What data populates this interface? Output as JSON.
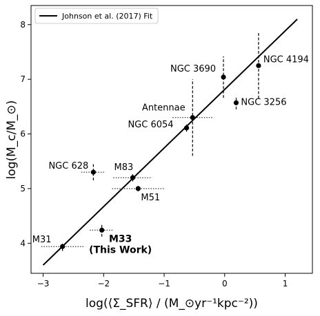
{
  "chart_data": {
    "type": "scatter",
    "title": "",
    "xlabel": "log(⟨Σ_SFR⟩ / (M_⊙yr⁻¹kpc⁻²))",
    "ylabel": "log(M_c/M_⊙)",
    "xlim": [
      -3.2,
      1.45
    ],
    "ylim": [
      3.45,
      8.35
    ],
    "x_ticks": [
      -3,
      -2,
      -1,
      0,
      1
    ],
    "y_ticks": [
      4,
      5,
      6,
      7,
      8
    ],
    "grid": false,
    "legend": {
      "position": "top-left",
      "entries": [
        "Johnson et al. (2017) Fit"
      ]
    },
    "fit_line": {
      "name": "Johnson et al. (2017) Fit",
      "x": [
        -3.0,
        1.2
      ],
      "y": [
        3.6,
        8.1
      ]
    },
    "points": [
      {
        "label": "M31",
        "x": -2.68,
        "y": 3.94,
        "xerr": 0.35,
        "yerr": 0.08,
        "bold": false,
        "label_dx": -30,
        "label_dy": -6
      },
      {
        "label": "M33\n(This Work)",
        "x": -2.03,
        "y": 4.24,
        "xerr": 0.2,
        "yerr": 0.12,
        "bold": true,
        "label_dx": 27,
        "label_dy": 17
      },
      {
        "label": "NGC 628",
        "x": -2.17,
        "y": 5.3,
        "xerr": 0.2,
        "yerr": 0.15,
        "bold": false,
        "label_dx": -36,
        "label_dy": -5
      },
      {
        "label": "M83",
        "x": -1.52,
        "y": 5.2,
        "xerr": 0.32,
        "yerr": 0.07,
        "bold": false,
        "label_dx": -13,
        "label_dy": -11
      },
      {
        "label": "M51",
        "x": -1.43,
        "y": 5.0,
        "xerr": 0.43,
        "yerr": 0.05,
        "bold": false,
        "label_dx": 18,
        "label_dy": 17
      },
      {
        "label": "NGC 6054",
        "x": -0.63,
        "y": 6.11,
        "xerr": 0.0,
        "yerr": 0.07,
        "bold": false,
        "label_dx": -52,
        "label_dy": -1
      },
      {
        "label": "Antennae",
        "x": -0.53,
        "y": 6.3,
        "xerr": 0.33,
        "yerr": 0.7,
        "bold": false,
        "label_dx": -42,
        "label_dy": -10
      },
      {
        "label": "NGC 3690",
        "x": -0.02,
        "y": 7.04,
        "xerr": 0.0,
        "yerr": 0.38,
        "bold": false,
        "label_dx": -44,
        "label_dy": -8
      },
      {
        "label": "NGC 3256",
        "x": 0.19,
        "y": 6.57,
        "xerr": 0.0,
        "yerr": 0.12,
        "bold": false,
        "label_dx": 40,
        "label_dy": 3
      },
      {
        "label": "NGC 4194",
        "x": 0.56,
        "y": 7.25,
        "xerr": 0.0,
        "yerr": 0.6,
        "bold": false,
        "label_dx": 40,
        "label_dy": -5
      }
    ]
  }
}
